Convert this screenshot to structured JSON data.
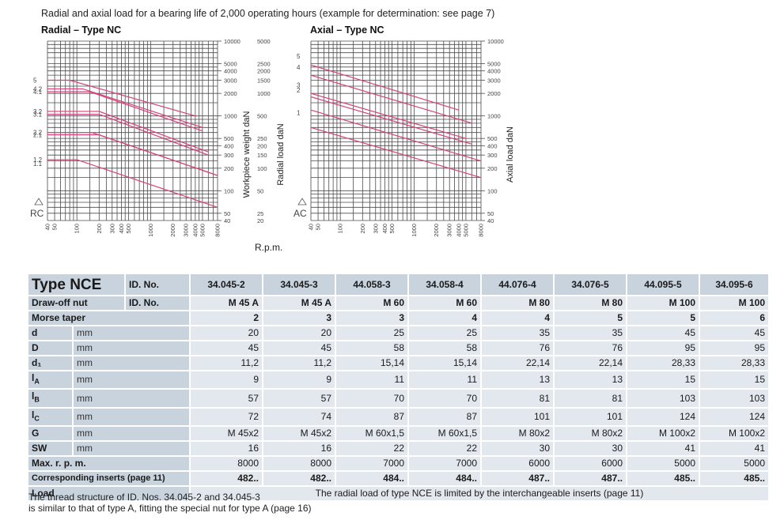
{
  "caption": "Radial and axial load for a bearing life of 2,000 operating hours (example for determination: see page 7)",
  "radial_title": "Radial – Type NC",
  "axial_title": "Axial – Type NC",
  "rpm_label": "R.p.m.",
  "chart_data": [
    {
      "type": "line",
      "title": "Radial – Type NC",
      "corner_label": "RC",
      "xscale": "log",
      "x_ticks": [
        "40",
        "50",
        "100",
        "200",
        "300",
        "400",
        "500",
        "1000",
        "2000",
        "3000",
        "4000",
        "5000",
        "8000"
      ],
      "y_left_ticks": [
        "5",
        "4.2",
        "4.1",
        "3.2",
        "3.1",
        "2.2",
        "2.1",
        "1.2",
        "1.1"
      ],
      "y_right1_label": "Workpiece weight daN",
      "y_right1_ticks": [
        "10000",
        "5000",
        "4000",
        "3000",
        "2000",
        "1000",
        "500",
        "400",
        "300",
        "200",
        "100",
        "50",
        "40"
      ],
      "y_right2_label": "Radial load daN",
      "y_right2_ticks": [
        "5000",
        "2500",
        "2000",
        "1500",
        "1000",
        "500",
        "250",
        "200",
        "150",
        "100",
        "50",
        "25",
        "20"
      ],
      "series": [
        {
          "values": [
            [
              40,
              3000
            ],
            [
              80,
              3000
            ],
            [
              4000,
              1000
            ]
          ]
        },
        {
          "values": [
            [
              40,
              2300
            ],
            [
              120,
              2300
            ],
            [
              5000,
              700
            ]
          ]
        },
        {
          "values": [
            [
              40,
              2100
            ],
            [
              150,
              2100
            ],
            [
              5000,
              630
            ]
          ]
        },
        {
          "values": [
            [
              40,
              1150
            ],
            [
              200,
              1150
            ],
            [
              6000,
              330
            ]
          ]
        },
        {
          "values": [
            [
              40,
              1050
            ],
            [
              200,
              1050
            ],
            [
              6000,
              300
            ]
          ]
        },
        {
          "values": [
            [
              40,
              600
            ],
            [
              160,
              600
            ],
            [
              8000,
              160
            ]
          ]
        },
        {
          "values": [
            [
              40,
              560
            ],
            [
              200,
              560
            ],
            [
              8000,
              160
            ]
          ]
        },
        {
          "values": [
            [
              40,
              260
            ],
            [
              100,
              260
            ],
            [
              8000,
              60
            ]
          ]
        }
      ]
    },
    {
      "type": "line",
      "title": "Axial – Type NC",
      "corner_label": "AC",
      "xscale": "log",
      "x_ticks": [
        "40",
        "50",
        "100",
        "200",
        "300",
        "400",
        "500",
        "1000",
        "2000",
        "3000",
        "4000",
        "5000",
        "8000"
      ],
      "y_left_ticks": [
        "5",
        "4",
        "3",
        "2",
        "1"
      ],
      "y_right1_label": "Axial load daN",
      "y_right1_ticks": [
        "10000",
        "5000",
        "4000",
        "3000",
        "2000",
        "1000",
        "500",
        "400",
        "300",
        "200",
        "100",
        "50",
        "40"
      ],
      "series": [
        {
          "values": [
            [
              40,
              4800
            ],
            [
              4000,
              1200
            ]
          ]
        },
        {
          "values": [
            [
              40,
              3500
            ],
            [
              6000,
              800
            ]
          ]
        },
        {
          "values": [
            [
              40,
              2000
            ],
            [
              5000,
              500
            ]
          ]
        },
        {
          "values": [
            [
              40,
              1800
            ],
            [
              6000,
              420
            ]
          ]
        },
        {
          "values": [
            [
              40,
              1200
            ],
            [
              8000,
              250
            ]
          ]
        },
        {
          "values": [
            [
              40,
              700
            ],
            [
              8000,
              150
            ]
          ]
        }
      ]
    }
  ],
  "table": {
    "type_label": "Type NCE",
    "id_label": "ID. No.",
    "ids": [
      "34.045-2",
      "34.045-3",
      "44.058-3",
      "34.058-4",
      "44.076-4",
      "34.076-5",
      "44.095-5",
      "34.095-6"
    ],
    "rows": [
      {
        "label": "Draw-off nut",
        "unit": "ID. No.",
        "bold": true,
        "values": [
          "M 45 A",
          "M 45 A",
          "M 60",
          "M 60",
          "M 80",
          "M 80",
          "M 100",
          "M 100"
        ]
      },
      {
        "label": "Morse taper",
        "unit": "",
        "bold": true,
        "values": [
          "2",
          "3",
          "3",
          "4",
          "4",
          "5",
          "5",
          "6"
        ]
      },
      {
        "label": "d",
        "unit": "mm",
        "bold": false,
        "values": [
          "20",
          "20",
          "25",
          "25",
          "35",
          "35",
          "45",
          "45"
        ]
      },
      {
        "label": "D",
        "unit": "mm",
        "bold": false,
        "values": [
          "45",
          "45",
          "58",
          "58",
          "76",
          "76",
          "95",
          "95"
        ]
      },
      {
        "label": "d₁",
        "unit": "mm",
        "bold": false,
        "values": [
          "11,2",
          "11,2",
          "15,14",
          "15,14",
          "22,14",
          "22,14",
          "28,33",
          "28,33"
        ]
      },
      {
        "label": "l_A",
        "unit": "mm",
        "bold": false,
        "values": [
          "9",
          "9",
          "11",
          "11",
          "13",
          "13",
          "15",
          "15"
        ]
      },
      {
        "label": "l_B",
        "unit": "mm",
        "bold": false,
        "values": [
          "57",
          "57",
          "70",
          "70",
          "81",
          "81",
          "103",
          "103"
        ]
      },
      {
        "label": "l_C",
        "unit": "mm",
        "bold": false,
        "values": [
          "72",
          "74",
          "87",
          "87",
          "101",
          "101",
          "124",
          "124"
        ]
      },
      {
        "label": "G",
        "unit": "mm",
        "bold": false,
        "values": [
          "M 45x2",
          "M 45x2",
          "M 60x1,5",
          "M 60x1,5",
          "M 80x2",
          "M 80x2",
          "M 100x2",
          "M 100x2"
        ]
      },
      {
        "label": "SW",
        "unit": "mm",
        "bold": false,
        "values": [
          "16",
          "16",
          "22",
          "22",
          "30",
          "30",
          "41",
          "41"
        ]
      },
      {
        "label": "Max. r. p. m.",
        "unit": "",
        "bold": false,
        "values": [
          "8000",
          "8000",
          "7000",
          "7000",
          "6000",
          "6000",
          "5000",
          "5000"
        ]
      },
      {
        "label": "Corresponding inserts (page 11)",
        "unit": "",
        "bold": true,
        "values": [
          "482..",
          "482..",
          "484..",
          "484..",
          "487..",
          "487..",
          "485..",
          "485.."
        ]
      }
    ],
    "load_label": "Load",
    "load_text": "The radial load of type NCE is limited by the interchangeable inserts (page 11)"
  },
  "footnote_line1": "The thread structure of ID. Nos. 34.045-2 and 34.045-3",
  "footnote_line2": "is similar to that of type A, fitting the special nut for type A (page 16)",
  "colors": {
    "grid": "#4a4a4a",
    "curve": "#d6427a",
    "header": "#c8d3de",
    "cell": "#e3e8ee"
  }
}
